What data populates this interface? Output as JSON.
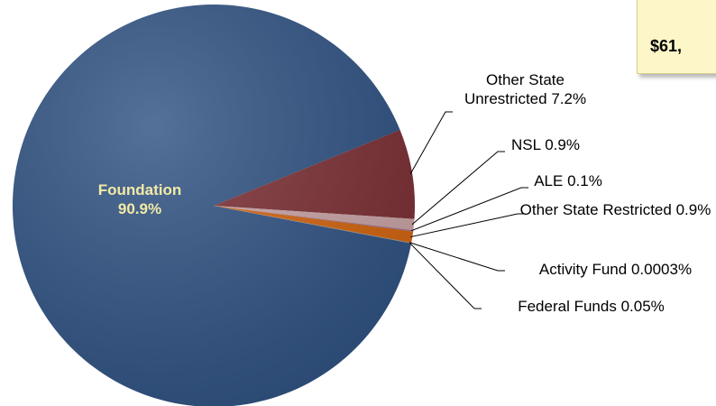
{
  "chart_data": {
    "type": "pie",
    "annotation": "$61,",
    "categories": [
      "Foundation",
      "Other State Unrestricted",
      "NSL",
      "ALE",
      "Other State Restricted",
      "Activity Fund",
      "Federal Funds"
    ],
    "values": [
      90.9,
      7.2,
      0.9,
      0.1,
      0.9,
      0.0003,
      0.05
    ],
    "value_labels": [
      "90.9%",
      "7.2%",
      "0.9%",
      "0.1%",
      "0.9%",
      "0.0003%",
      "0.05%"
    ],
    "colors": [
      "#2f5282",
      "#7b2f34",
      "#c9a3a5",
      "#9b6a8a",
      "#d2640f",
      "#e0a040",
      "#8c8c8c"
    ]
  }
}
